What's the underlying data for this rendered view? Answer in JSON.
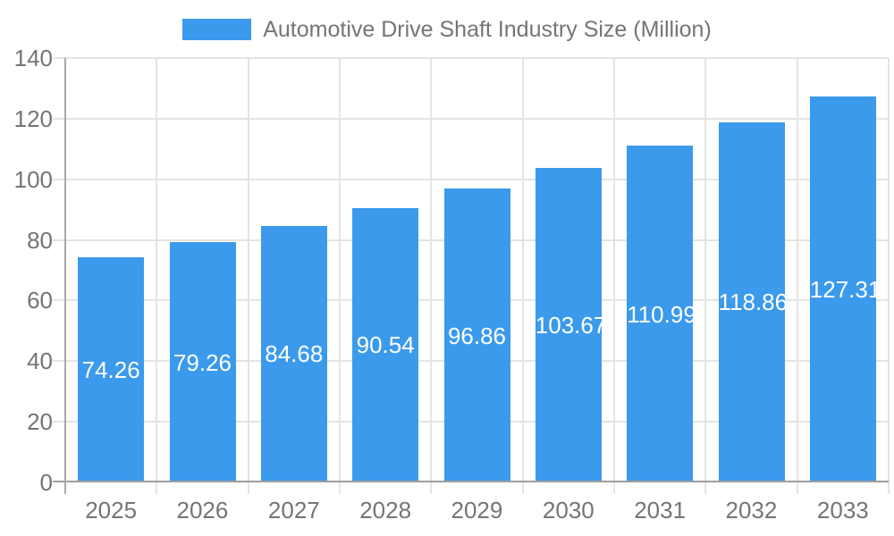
{
  "legend": {
    "label": "Automotive Drive Shaft Industry Size (Million)"
  },
  "chart_data": {
    "type": "bar",
    "title": "Automotive Drive Shaft Industry Size (Million)",
    "series_name": "Automotive Drive Shaft Industry Size (Million)",
    "categories": [
      "2025",
      "2026",
      "2027",
      "2028",
      "2029",
      "2030",
      "2031",
      "2032",
      "2033"
    ],
    "values": [
      74.26,
      79.26,
      84.68,
      90.54,
      96.86,
      103.67,
      110.99,
      118.86,
      127.31
    ],
    "value_labels": [
      "74.26",
      "79.26",
      "84.68",
      "90.54",
      "96.86",
      "103.67",
      "110.99",
      "118.86",
      "127.31"
    ],
    "xlabel": "",
    "ylabel": "",
    "ylim": [
      0,
      140
    ],
    "yticks": [
      0,
      20,
      40,
      60,
      80,
      100,
      120,
      140
    ],
    "grid": true,
    "legend_position": "top",
    "colors": {
      "bar": "#3B9AEC",
      "value_label": "#ffffff",
      "axis_text": "#757575",
      "gridline": "#e4e4e4",
      "axis_line": "#9e9e9e",
      "background": "#ffffff"
    }
  }
}
